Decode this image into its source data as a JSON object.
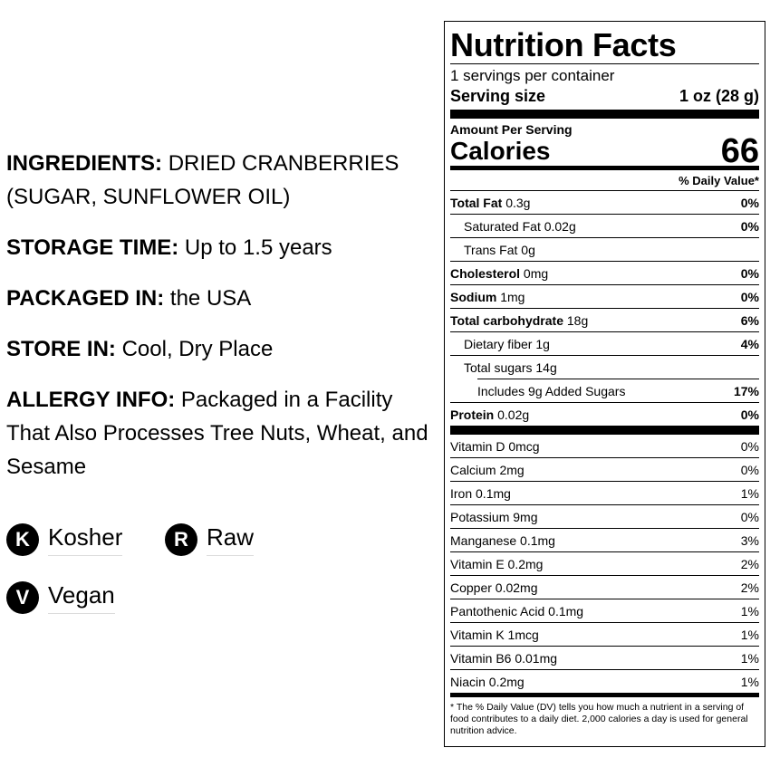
{
  "info": {
    "ingredients_label": "INGREDIENTS:",
    "ingredients_value": "DRIED CRANBERRIES (SUGAR, SUNFLOWER OIL)",
    "storage_label": "STORAGE TIME:",
    "storage_value": "Up to 1.5 years",
    "packaged_label": "PACKAGED IN:",
    "packaged_value": "the USA",
    "store_label": "STORE IN:",
    "store_value": "Cool, Dry Place",
    "allergy_label": "ALLERGY INFO:",
    "allergy_value": "Packaged in a Facility That Also Processes Tree Nuts, Wheat, and Sesame"
  },
  "badges": [
    {
      "letter": "K",
      "label": "Kosher"
    },
    {
      "letter": "R",
      "label": "Raw"
    },
    {
      "letter": "V",
      "label": "Vegan"
    }
  ],
  "nutrition": {
    "title": "Nutrition Facts",
    "servings": "1 servings per container",
    "serving_size_label": "Serving size",
    "serving_size_value": "1 oz (28 g)",
    "amount_per_serving": "Amount Per Serving",
    "calories_label": "Calories",
    "calories_value": "66",
    "dv_header": "% Daily Value*",
    "rows": [
      {
        "name": "Total Fat",
        "amount": "0.3g",
        "dv": "0%"
      },
      {
        "name": "Saturated Fat",
        "amount": "0.02g",
        "dv": "0%"
      },
      {
        "name": "Trans Fat",
        "amount": "0g",
        "dv": ""
      },
      {
        "name": "Cholesterol",
        "amount": "0mg",
        "dv": "0%"
      },
      {
        "name": "Sodium",
        "amount": "1mg",
        "dv": "0%"
      },
      {
        "name": "Total carbohydrate",
        "amount": "18g",
        "dv": "6%"
      },
      {
        "name": "Dietary fiber",
        "amount": "1g",
        "dv": "4%"
      },
      {
        "name": "Total sugars",
        "amount": "14g",
        "dv": ""
      },
      {
        "name": "Includes 9g Added Sugars",
        "amount": "",
        "dv": "17%"
      },
      {
        "name": "Protein",
        "amount": "0.02g",
        "dv": "0%"
      }
    ],
    "vitamins": [
      {
        "name": "Vitamin D 0mcg",
        "dv": "0%"
      },
      {
        "name": "Calcium 2mg",
        "dv": "0%"
      },
      {
        "name": "Iron 0.1mg",
        "dv": "1%"
      },
      {
        "name": "Potassium 9mg",
        "dv": "0%"
      },
      {
        "name": "Manganese 0.1mg",
        "dv": "3%"
      },
      {
        "name": "Vitamin E 0.2mg",
        "dv": "2%"
      },
      {
        "name": "Copper 0.02mg",
        "dv": "2%"
      },
      {
        "name": "Pantothenic Acid 0.1mg",
        "dv": "1%"
      },
      {
        "name": "Vitamin K 1mcg",
        "dv": "1%"
      },
      {
        "name": "Vitamin B6 0.01mg",
        "dv": "1%"
      },
      {
        "name": "Niacin 0.2mg",
        "dv": "1%"
      }
    ],
    "footnote": "* The % Daily Value (DV) tells you how much a nutrient in a serving of food contributes to a daily diet. 2,000 calories a day is used for general nutrition advice."
  }
}
